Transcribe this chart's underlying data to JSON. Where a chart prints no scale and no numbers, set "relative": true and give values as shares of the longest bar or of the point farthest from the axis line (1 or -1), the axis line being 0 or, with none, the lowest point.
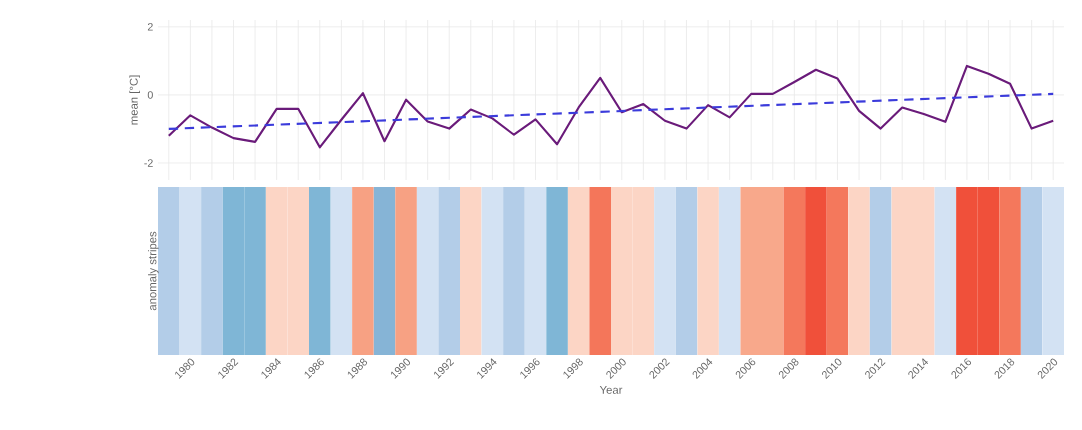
{
  "chart_data": [
    {
      "type": "line",
      "ylabel": "mean [°C]",
      "x": [
        1979,
        1980,
        1981,
        1982,
        1983,
        1984,
        1985,
        1986,
        1987,
        1988,
        1989,
        1990,
        1991,
        1992,
        1993,
        1994,
        1995,
        1996,
        1997,
        1998,
        1999,
        2000,
        2001,
        2002,
        2003,
        2004,
        2005,
        2006,
        2007,
        2008,
        2009,
        2010,
        2011,
        2012,
        2013,
        2014,
        2015,
        2016,
        2017,
        2018,
        2019,
        2020
      ],
      "series": [
        {
          "color": "#6a1b7a",
          "line_style": "solid",
          "values": [
            -1.2,
            -0.6,
            -0.96,
            -1.27,
            -1.38,
            -0.41,
            -0.41,
            -1.54,
            -0.73,
            0.05,
            -1.36,
            -0.14,
            -0.78,
            -0.99,
            -0.43,
            -0.69,
            -1.17,
            -0.72,
            -1.45,
            -0.37,
            0.5,
            -0.51,
            -0.27,
            -0.76,
            -0.99,
            -0.3,
            -0.66,
            0.03,
            0.03,
            0.38,
            0.74,
            0.48,
            -0.47,
            -0.99,
            -0.37,
            -0.56,
            -0.79,
            0.85,
            0.62,
            0.33,
            -0.99,
            -0.76
          ]
        },
        {
          "color": "#3b3bdb",
          "line_style": "dashed",
          "x": [
            1979,
            2020
          ],
          "values": [
            -1.0,
            0.03
          ]
        }
      ],
      "xlim": [
        1978.5,
        2020.5
      ],
      "xticks": [
        1979,
        1980,
        1981,
        1982,
        1983,
        1984,
        1985,
        1986,
        1987,
        1988,
        1989,
        1990,
        1991,
        1992,
        1993,
        1994,
        1995,
        1996,
        1997,
        1998,
        1999,
        2000,
        2001,
        2002,
        2003,
        2004,
        2005,
        2006,
        2007,
        2008,
        2009,
        2010,
        2011,
        2012,
        2013,
        2014,
        2015,
        2016,
        2017,
        2018,
        2019,
        2020
      ],
      "ylim": [
        -2.5,
        2.2
      ],
      "yticks": [
        -2,
        0,
        2
      ],
      "grid": true,
      "tick_labels": "y"
    },
    {
      "type": "bar",
      "relative": true,
      "ylabel": "anomaly stripes",
      "xlabel": "Year",
      "values": [
        1,
        1,
        1,
        1,
        1,
        1,
        1,
        1,
        1,
        1,
        1,
        1,
        1,
        1,
        1,
        1,
        1,
        1,
        1,
        1,
        1,
        1,
        1,
        1,
        1,
        1,
        1,
        1,
        1,
        1,
        1,
        1,
        1,
        1,
        1,
        1,
        1,
        1,
        1,
        1,
        1,
        1
      ],
      "categories": [
        null,
        "1980",
        null,
        "1982",
        null,
        "1984",
        null,
        "1986",
        null,
        "1988",
        null,
        "1990",
        null,
        "1992",
        null,
        "1994",
        null,
        "1996",
        null,
        "1998",
        null,
        "2000",
        null,
        "2002",
        null,
        "2004",
        null,
        "2006",
        null,
        "2008",
        null,
        "2010",
        null,
        "2012",
        null,
        "2014",
        null,
        "2016",
        null,
        "2018",
        null,
        "2020"
      ],
      "colors": [
        "#b3cde8",
        "#d3e2f3",
        "#b3cde8",
        "#7fb6d6",
        "#7fb6d6",
        "#fcd5c5",
        "#fcd5c5",
        "#7fb6d6",
        "#d3e2f3",
        "#f7a183",
        "#86b4d6",
        "#f7a183",
        "#d3e2f3",
        "#b3cde8",
        "#fcd5c5",
        "#d3e2f3",
        "#b3cde8",
        "#d3e2f3",
        "#7fb6d6",
        "#fcd5c5",
        "#f4765a",
        "#fcd5c5",
        "#fcd5c5",
        "#d3e2f3",
        "#b3cde8",
        "#fcd5c5",
        "#d3e2f3",
        "#f8a88b",
        "#f8a88b",
        "#f4785c",
        "#f0503a",
        "#f4785c",
        "#fcd5c5",
        "#b3cde8",
        "#fcd5c5",
        "#fcd5c5",
        "#d3e2f3",
        "#f0503a",
        "#f0503a",
        "#f4785c",
        "#b3cde8",
        "#d3e2f3"
      ]
    }
  ]
}
